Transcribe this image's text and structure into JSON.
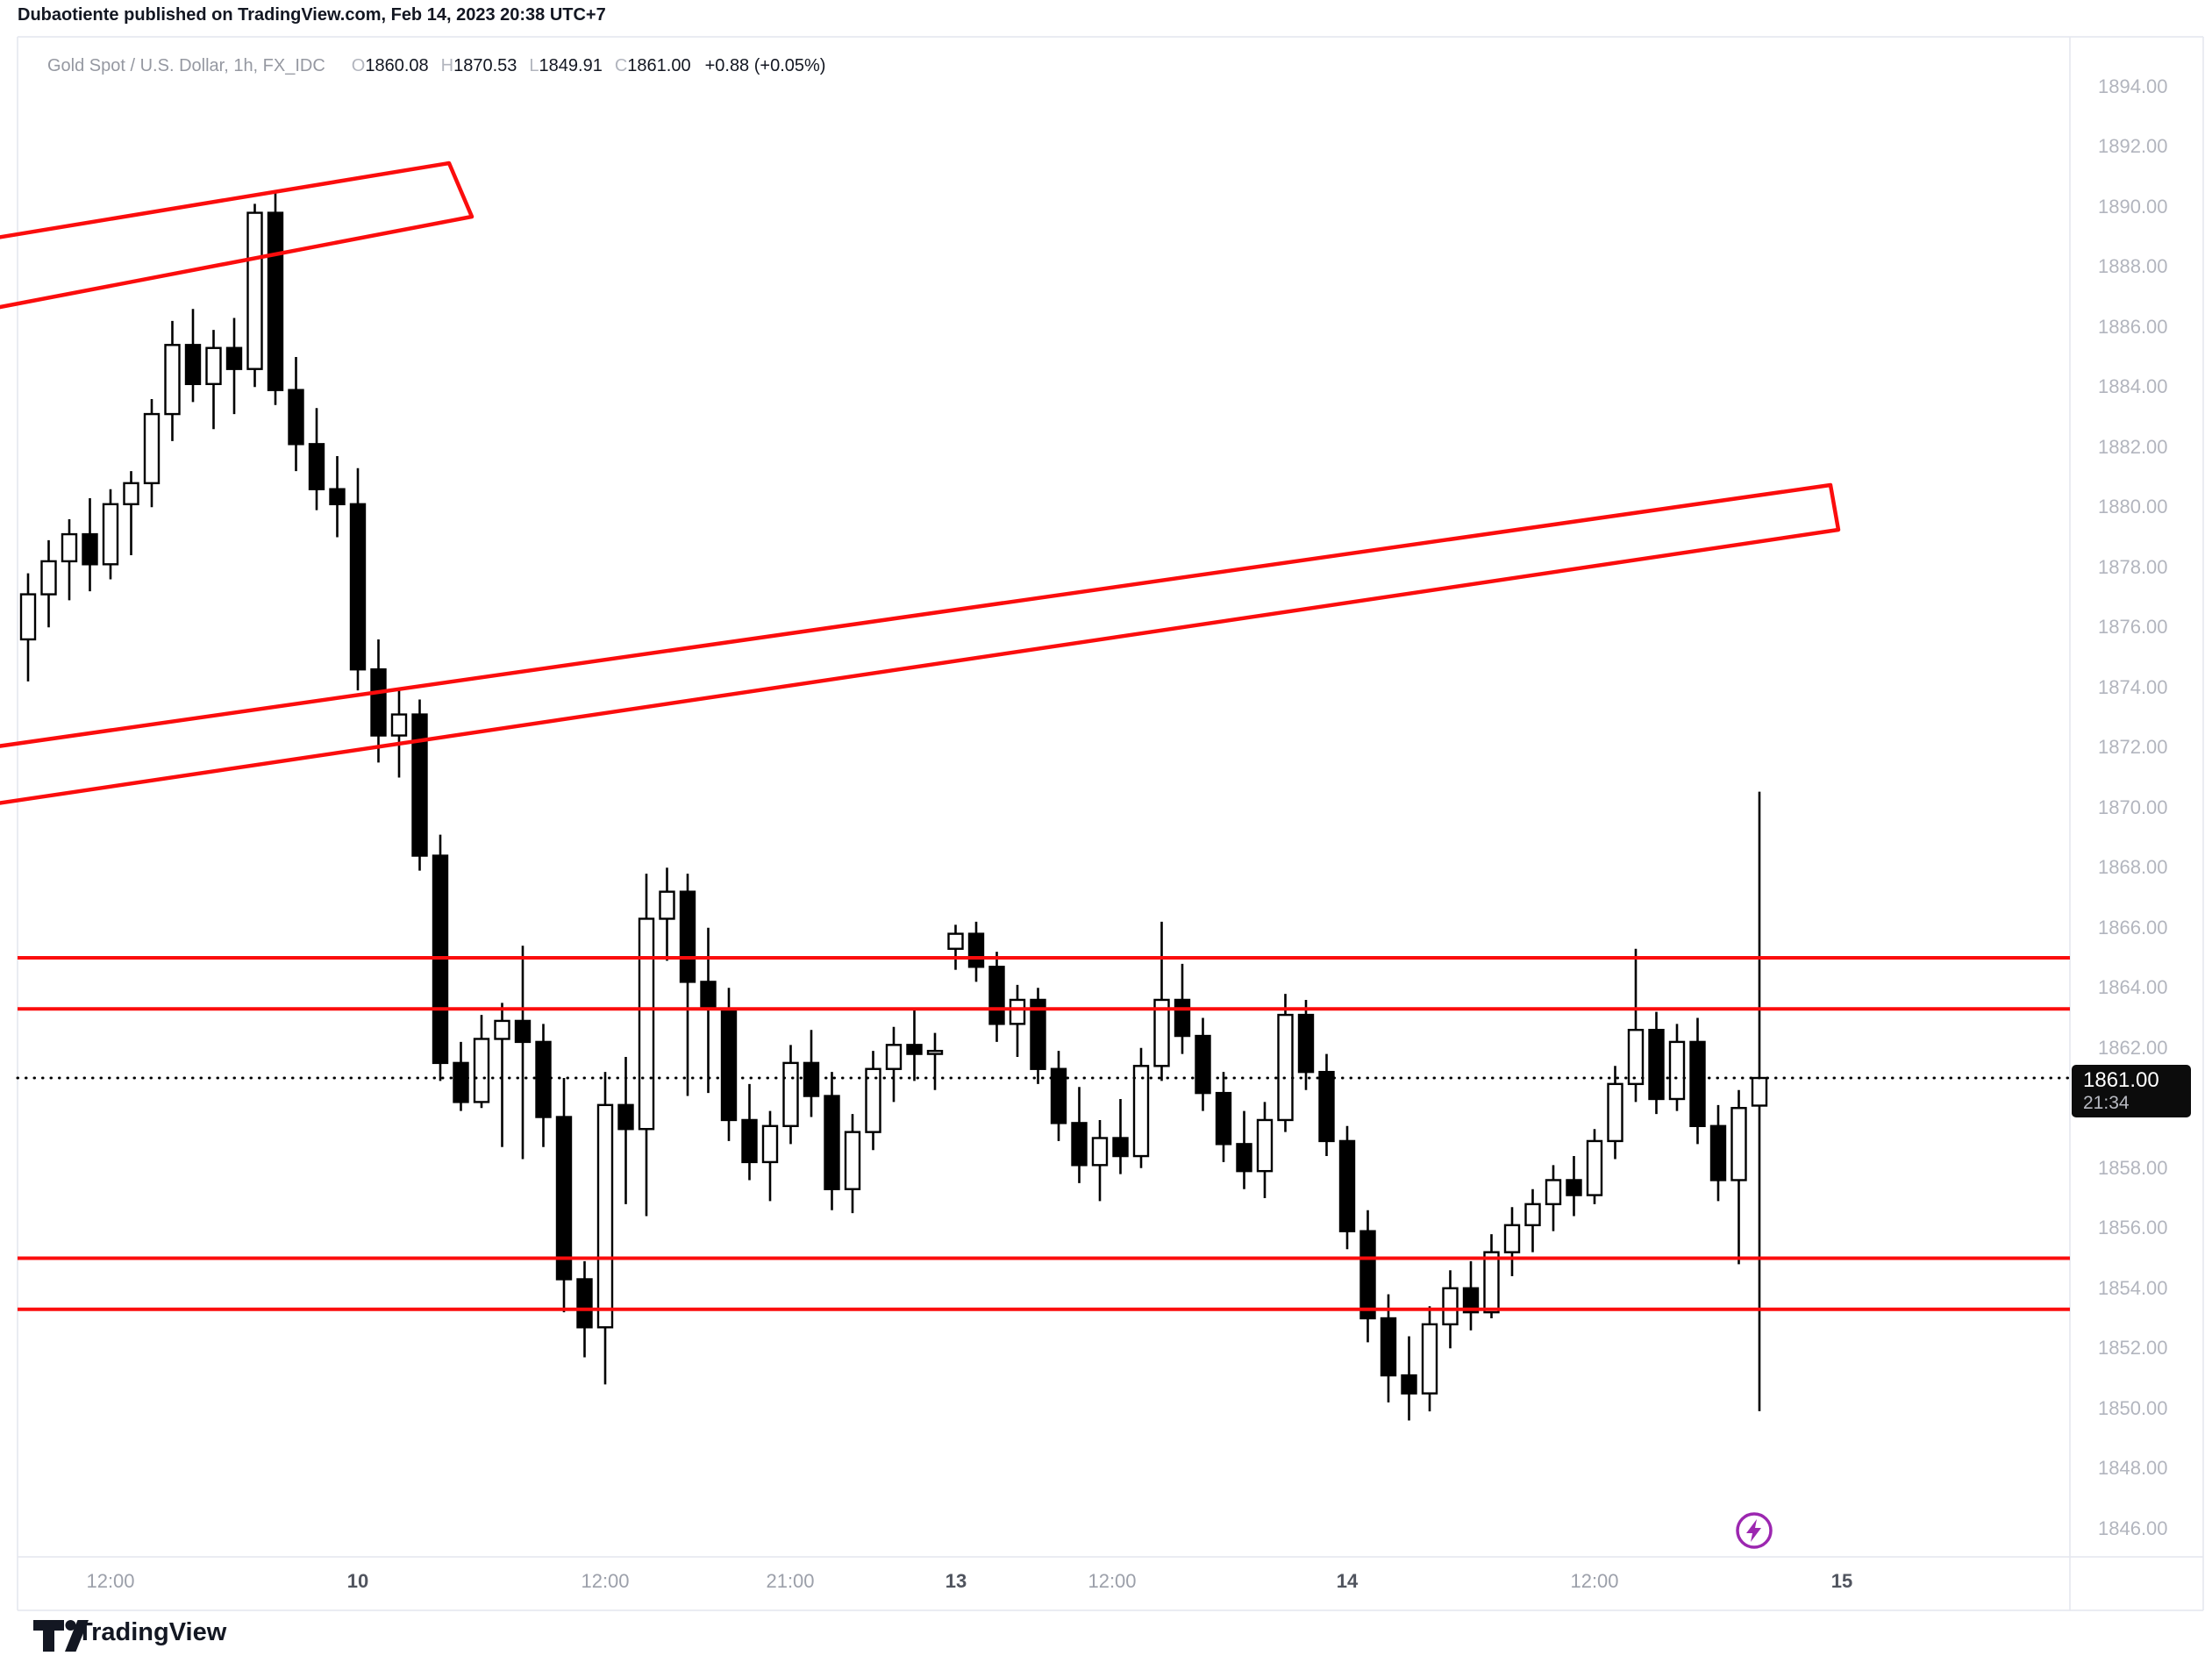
{
  "header": {
    "title": "Dubaotiente published on TradingView.com, Feb 14, 2023 20:38 UTC+7"
  },
  "legend": {
    "symbol": "Gold Spot / U.S. Dollar, 1h, FX_IDC",
    "o_label": "O",
    "o_value": "1860.08",
    "h_label": "H",
    "h_value": "1870.53",
    "l_label": "L",
    "l_value": "1849.91",
    "c_label": "C",
    "c_value": "1861.00",
    "change": "+0.88 (+0.05%)"
  },
  "price_flag": {
    "price": "1861.00",
    "countdown": "21:34"
  },
  "footer": {
    "brand": "TradingView",
    "logo_icon": "tradingview-logo-icon"
  },
  "marker": {
    "icon": "flash-icon",
    "color": "#9c27b0"
  },
  "colors": {
    "drawing_red": "#fb0d0d",
    "candle_up_fill": "#ffffff",
    "candle_down_fill": "#000000",
    "candle_border": "#000000",
    "axis_text": "#b2b5be",
    "border": "#e4e6ee",
    "flag_bg": "#0c0c0c"
  },
  "axes": {
    "price_ticks": [
      1894,
      1892,
      1890,
      1888,
      1886,
      1884,
      1882,
      1880,
      1878,
      1876,
      1874,
      1872,
      1870,
      1868,
      1866,
      1864,
      1862,
      1858,
      1856,
      1854,
      1852,
      1850,
      1848,
      1846
    ],
    "time_ticks": [
      {
        "label": "12:00",
        "x": 126,
        "day": false
      },
      {
        "label": "10",
        "x": 408,
        "day": true
      },
      {
        "label": "12:00",
        "x": 690,
        "day": false
      },
      {
        "label": "21:00",
        "x": 901,
        "day": false
      },
      {
        "label": "13",
        "x": 1090,
        "day": true
      },
      {
        "label": "12:00",
        "x": 1268,
        "day": false
      },
      {
        "label": "14",
        "x": 1536,
        "day": true
      },
      {
        "label": "12:00",
        "x": 1818,
        "day": false
      },
      {
        "label": "15",
        "x": 2100,
        "day": true
      }
    ]
  },
  "chart_data": {
    "type": "candlestick",
    "title": "Gold Spot / U.S. Dollar",
    "timeframe": "1h",
    "exchange": "FX_IDC",
    "last_bar": {
      "open": 1860.08,
      "high": 1870.53,
      "low": 1849.91,
      "close": 1861.0,
      "change": 0.88,
      "change_pct": 0.05
    },
    "price_line": 1861.0,
    "ylim": [
      1845.0,
      1895.2
    ],
    "grid": false,
    "horizontal_levels": [
      1865.0,
      1863.3,
      1855.0,
      1853.3
    ],
    "channels": [
      {
        "name": "upper-resistance-channel",
        "points": [
          [
            -10,
            272
          ],
          [
            512,
            186
          ],
          [
            538,
            247
          ],
          [
            -10,
            352
          ]
        ]
      },
      {
        "name": "rising-mid-channel",
        "points": [
          [
            -10,
            852
          ],
          [
            2087,
            553
          ],
          [
            2096,
            604
          ],
          [
            -10,
            917
          ]
        ]
      }
    ],
    "bars": [
      [
        "Feb 9 08:00",
        1875.6,
        1877.8,
        1874.2,
        1877.1
      ],
      [
        "Feb 9 09:00",
        1877.1,
        1878.9,
        1876.0,
        1878.2
      ],
      [
        "Feb 9 10:00",
        1878.2,
        1879.6,
        1876.9,
        1879.1
      ],
      [
        "Feb 9 11:00",
        1879.1,
        1880.3,
        1877.2,
        1878.1
      ],
      [
        "Feb 9 12:00",
        1878.1,
        1880.6,
        1877.6,
        1880.1
      ],
      [
        "Feb 9 13:00",
        1880.1,
        1881.2,
        1878.4,
        1880.8
      ],
      [
        "Feb 9 14:00",
        1880.8,
        1883.6,
        1880.0,
        1883.1
      ],
      [
        "Feb 9 15:00",
        1883.1,
        1886.2,
        1882.2,
        1885.4
      ],
      [
        "Feb 9 16:00",
        1885.4,
        1886.6,
        1883.5,
        1884.1
      ],
      [
        "Feb 9 17:00",
        1884.1,
        1885.9,
        1882.6,
        1885.3
      ],
      [
        "Feb 9 18:00",
        1885.3,
        1886.3,
        1883.1,
        1884.6
      ],
      [
        "Feb 9 19:00",
        1884.6,
        1890.1,
        1884.0,
        1889.8
      ],
      [
        "Feb 9 20:00",
        1889.8,
        1890.5,
        1883.4,
        1883.9
      ],
      [
        "Feb 9 21:00",
        1883.9,
        1885.0,
        1881.2,
        1882.1
      ],
      [
        "Feb 9 22:00",
        1882.1,
        1883.3,
        1879.9,
        1880.6
      ],
      [
        "Feb 9 23:00",
        1880.6,
        1881.7,
        1879.0,
        1880.1
      ],
      [
        "Feb 10 00:00",
        1880.1,
        1881.3,
        1873.9,
        1874.6
      ],
      [
        "Feb 10 01:00",
        1874.6,
        1875.6,
        1871.5,
        1872.4
      ],
      [
        "Feb 10 02:00",
        1872.4,
        1873.9,
        1871.0,
        1873.1
      ],
      [
        "Feb 10 03:00",
        1873.1,
        1873.6,
        1867.9,
        1868.4
      ],
      [
        "Feb 10 04:00",
        1868.4,
        1869.1,
        1860.9,
        1861.5
      ],
      [
        "Feb 10 05:00",
        1861.5,
        1862.2,
        1859.9,
        1860.2
      ],
      [
        "Feb 10 06:00",
        1860.2,
        1863.1,
        1860.0,
        1862.3
      ],
      [
        "Feb 10 07:00",
        1862.3,
        1863.5,
        1858.7,
        1862.9
      ],
      [
        "Feb 10 08:00",
        1862.9,
        1865.4,
        1858.3,
        1862.2
      ],
      [
        "Feb 10 09:00",
        1862.2,
        1862.8,
        1858.7,
        1859.7
      ],
      [
        "Feb 10 10:00",
        1859.7,
        1861.0,
        1853.2,
        1854.3
      ],
      [
        "Feb 10 11:00",
        1854.3,
        1854.9,
        1851.7,
        1852.7
      ],
      [
        "Feb 10 12:00",
        1852.7,
        1861.2,
        1850.8,
        1860.1
      ],
      [
        "Feb 10 13:00",
        1860.1,
        1861.7,
        1856.8,
        1859.3
      ],
      [
        "Feb 10 14:00",
        1859.3,
        1867.8,
        1856.4,
        1866.3
      ],
      [
        "Feb 10 15:00",
        1866.3,
        1868.0,
        1864.9,
        1867.2
      ],
      [
        "Feb 10 16:00",
        1867.2,
        1867.8,
        1860.4,
        1864.2
      ],
      [
        "Feb 10 17:00",
        1864.2,
        1866.0,
        1860.5,
        1863.3
      ],
      [
        "Feb 10 18:00",
        1863.3,
        1864.0,
        1858.9,
        1859.6
      ],
      [
        "Feb 10 19:00",
        1859.6,
        1860.8,
        1857.6,
        1858.2
      ],
      [
        "Feb 10 20:00",
        1858.2,
        1859.9,
        1856.9,
        1859.4
      ],
      [
        "Feb 10 21:00",
        1859.4,
        1862.1,
        1858.8,
        1861.5
      ],
      [
        "Feb 10 22:00",
        1861.5,
        1862.6,
        1859.7,
        1860.4
      ],
      [
        "Feb 10 23:00",
        1860.4,
        1861.2,
        1856.6,
        1857.3
      ],
      [
        "Feb 11 00:00",
        1857.3,
        1859.8,
        1856.5,
        1859.2
      ],
      [
        "Feb 11 01:00",
        1859.2,
        1861.9,
        1858.6,
        1861.3
      ],
      [
        "Feb 11 02:00",
        1861.3,
        1862.7,
        1860.2,
        1862.1
      ],
      [
        "Feb 11 03:00",
        1862.1,
        1863.3,
        1860.9,
        1861.8
      ],
      [
        "Feb 11 04:00",
        1861.8,
        1862.5,
        1860.6,
        1861.9
      ],
      [
        "Feb 13 05:00",
        1865.3,
        1866.1,
        1864.6,
        1865.8
      ],
      [
        "Feb 13 06:00",
        1865.8,
        1866.2,
        1864.2,
        1864.7
      ],
      [
        "Feb 13 07:00",
        1864.7,
        1865.2,
        1862.2,
        1862.8
      ],
      [
        "Feb 13 08:00",
        1862.8,
        1864.1,
        1861.7,
        1863.6
      ],
      [
        "Feb 13 09:00",
        1863.6,
        1864.0,
        1860.8,
        1861.3
      ],
      [
        "Feb 13 10:00",
        1861.3,
        1861.9,
        1858.9,
        1859.5
      ],
      [
        "Feb 13 11:00",
        1859.5,
        1860.7,
        1857.5,
        1858.1
      ],
      [
        "Feb 13 12:00",
        1858.1,
        1859.6,
        1856.9,
        1859.0
      ],
      [
        "Feb 13 13:00",
        1859.0,
        1860.3,
        1857.8,
        1858.4
      ],
      [
        "Feb 13 14:00",
        1858.4,
        1862.0,
        1858.0,
        1861.4
      ],
      [
        "Feb 13 15:00",
        1861.4,
        1866.2,
        1860.9,
        1863.6
      ],
      [
        "Feb 13 16:00",
        1863.6,
        1864.8,
        1861.8,
        1862.4
      ],
      [
        "Feb 13 17:00",
        1862.4,
        1863.0,
        1859.9,
        1860.5
      ],
      [
        "Feb 13 18:00",
        1860.5,
        1861.2,
        1858.2,
        1858.8
      ],
      [
        "Feb 13 19:00",
        1858.8,
        1859.9,
        1857.3,
        1857.9
      ],
      [
        "Feb 13 20:00",
        1857.9,
        1860.2,
        1857.0,
        1859.6
      ],
      [
        "Feb 13 21:00",
        1859.6,
        1863.8,
        1859.2,
        1863.1
      ],
      [
        "Feb 13 22:00",
        1863.1,
        1863.6,
        1860.6,
        1861.2
      ],
      [
        "Feb 13 23:00",
        1861.2,
        1861.8,
        1858.4,
        1858.9
      ],
      [
        "Feb 14 00:00",
        1858.9,
        1859.4,
        1855.3,
        1855.9
      ],
      [
        "Feb 14 01:00",
        1855.9,
        1856.6,
        1852.2,
        1853.0
      ],
      [
        "Feb 14 02:00",
        1853.0,
        1853.8,
        1850.2,
        1851.1
      ],
      [
        "Feb 14 03:00",
        1851.1,
        1852.4,
        1849.6,
        1850.5
      ],
      [
        "Feb 14 04:00",
        1850.5,
        1853.4,
        1849.9,
        1852.8
      ],
      [
        "Feb 14 05:00",
        1852.8,
        1854.6,
        1852.0,
        1854.0
      ],
      [
        "Feb 14 06:00",
        1854.0,
        1854.9,
        1852.6,
        1853.2
      ],
      [
        "Feb 14 07:00",
        1853.2,
        1855.8,
        1853.0,
        1855.2
      ],
      [
        "Feb 14 08:00",
        1855.2,
        1856.7,
        1854.4,
        1856.1
      ],
      [
        "Feb 14 09:00",
        1856.1,
        1857.3,
        1855.2,
        1856.8
      ],
      [
        "Feb 14 10:00",
        1856.8,
        1858.1,
        1855.9,
        1857.6
      ],
      [
        "Feb 14 11:00",
        1857.6,
        1858.4,
        1856.4,
        1857.1
      ],
      [
        "Feb 14 12:00",
        1857.1,
        1859.3,
        1856.8,
        1858.9
      ],
      [
        "Feb 14 13:00",
        1858.9,
        1861.4,
        1858.3,
        1860.8
      ],
      [
        "Feb 14 14:00",
        1860.8,
        1865.3,
        1860.2,
        1862.6
      ],
      [
        "Feb 14 15:00",
        1862.6,
        1863.2,
        1859.8,
        1860.3
      ],
      [
        "Feb 14 16:00",
        1860.3,
        1862.8,
        1859.9,
        1862.2
      ],
      [
        "Feb 14 17:00",
        1862.2,
        1863.0,
        1858.8,
        1859.4
      ],
      [
        "Feb 14 18:00",
        1859.4,
        1860.1,
        1856.9,
        1857.6
      ],
      [
        "Feb 14 19:00",
        1857.6,
        1860.6,
        1854.8,
        1860.0
      ],
      [
        "Feb 14 20:00",
        1860.08,
        1870.53,
        1849.91,
        1861.0
      ]
    ]
  }
}
